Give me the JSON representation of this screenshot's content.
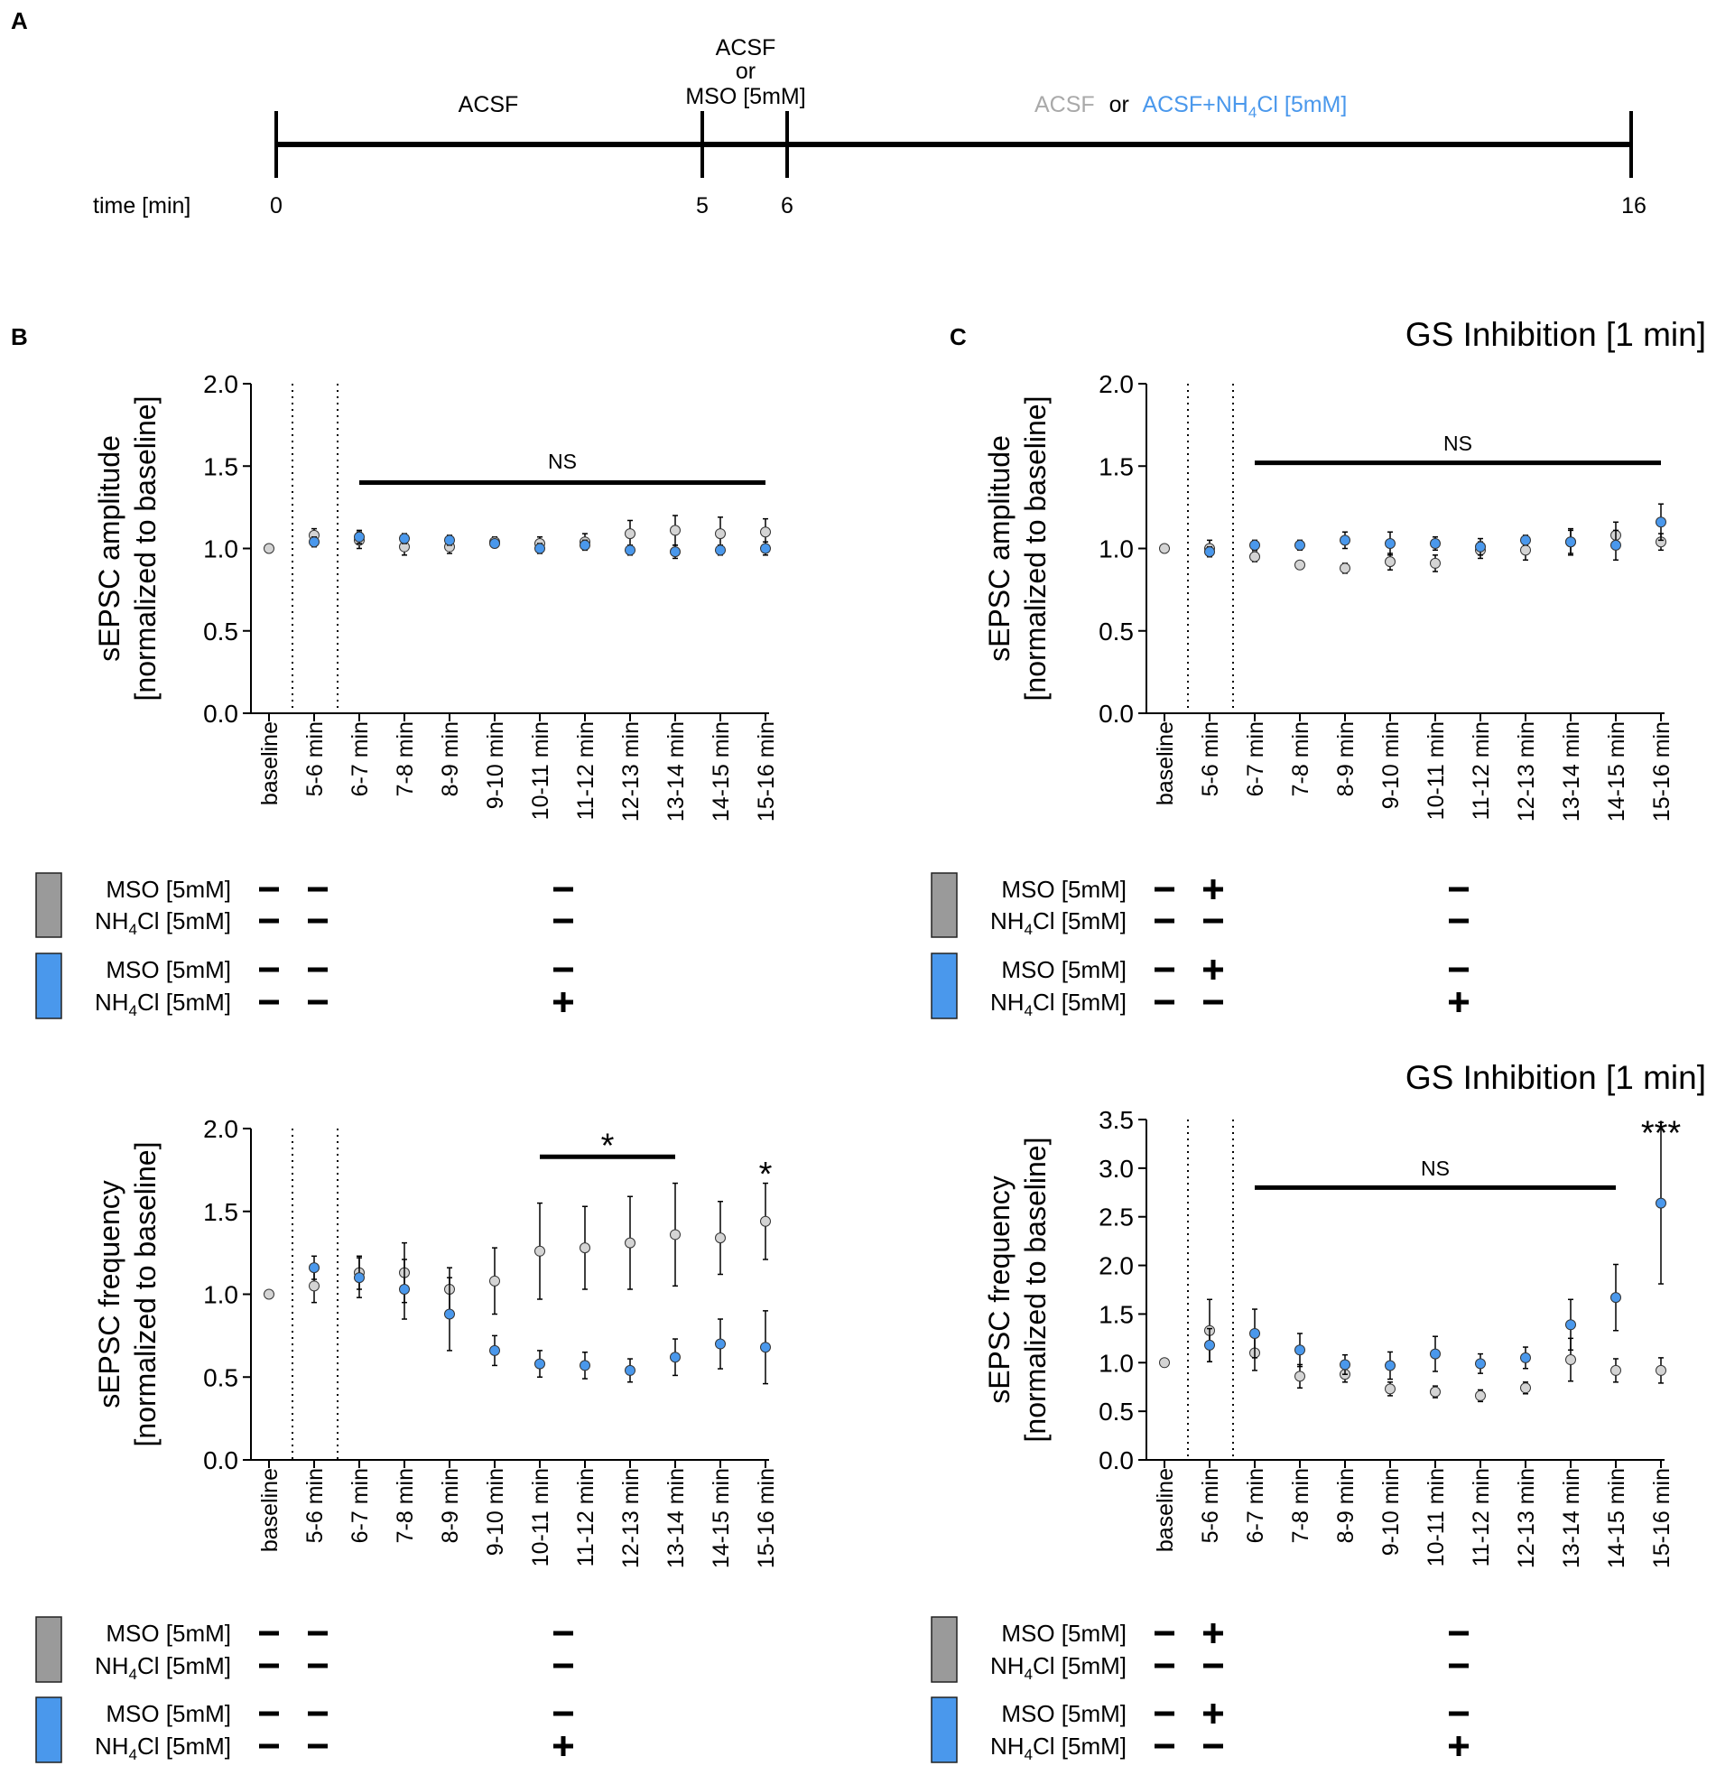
{
  "colors": {
    "gray": "#d4d4d4",
    "gray_swatch": "#9a9a9a",
    "blue": "#4a98ec",
    "black": "#000000"
  },
  "panel_a": {
    "letter": "A",
    "time_label": "time [min]",
    "ticks": [
      "0",
      "5",
      "6",
      "16"
    ],
    "tick_values": [
      0,
      5,
      6,
      16
    ],
    "phase1": "ACSF",
    "phase2_lines": [
      "ACSF",
      "or",
      "MSO [5mM]"
    ],
    "phase3_acsf": "ACSF",
    "phase3_or": "or",
    "phase3_nh4_pre": "ACSF+NH",
    "phase3_nh4_sub": "4",
    "phase3_nh4_post": "Cl [5mM]"
  },
  "panel_letters": {
    "b": "B",
    "c": "C"
  },
  "panel_c_title": "GS Inhibition [1 min]",
  "panel_d_title": "GS Inhibition [1 min]",
  "categories": [
    "baseline",
    "5-6 min",
    "6-7 min",
    "7-8 min",
    "8-9 min",
    "9-10 min",
    "10-11 min",
    "11-12 min",
    "12-13 min",
    "13-14 min",
    "14-15 min",
    "15-16 min"
  ],
  "treatment_tables": {
    "b": {
      "gray": {
        "mso": [
          "-",
          "-",
          "-"
        ],
        "nh4": [
          "-",
          "-",
          "-"
        ]
      },
      "blue": {
        "mso": [
          "-",
          "-",
          "-"
        ],
        "nh4": [
          "-",
          "-",
          "+"
        ]
      }
    },
    "c": {
      "gray": {
        "mso": [
          "-",
          "+",
          "-"
        ],
        "nh4": [
          "-",
          "-",
          "-"
        ]
      },
      "blue": {
        "mso": [
          "-",
          "+",
          "-"
        ],
        "nh4": [
          "-",
          "-",
          "+"
        ]
      }
    }
  },
  "treatment_labels": {
    "mso": "MSO [5mM]",
    "nh4_pre": "NH",
    "nh4_sub": "4",
    "nh4_post": "Cl [5mM]"
  },
  "chart_data": [
    {
      "id": "b_amp",
      "type": "scatter",
      "ylabel_line1": "sEPSC amplitude",
      "ylabel_line2": "[normalized to baseline]",
      "ylim": [
        0,
        2.0
      ],
      "yticks": [
        "0.0",
        "0.5",
        "1.0",
        "1.5",
        "2.0"
      ],
      "ytick_values": [
        0,
        0.5,
        1.0,
        1.5,
        2.0
      ],
      "series": [
        {
          "name": "ACSF",
          "color": "gray",
          "values": [
            1.0,
            1.08,
            1.05,
            1.01,
            1.01,
            1.04,
            1.03,
            1.04,
            1.09,
            1.11,
            1.09,
            1.1
          ],
          "errors": [
            0.0,
            0.04,
            0.05,
            0.05,
            0.04,
            0.03,
            0.04,
            0.05,
            0.08,
            0.09,
            0.1,
            0.08
          ]
        },
        {
          "name": "ACSF+NH4Cl [5mM]",
          "color": "blue",
          "values": [
            null,
            1.04,
            1.07,
            1.06,
            1.05,
            1.03,
            1.0,
            1.02,
            0.99,
            0.98,
            0.99,
            1.0
          ],
          "errors": [
            null,
            0.03,
            0.04,
            0.03,
            0.03,
            0.02,
            0.03,
            0.03,
            0.03,
            0.04,
            0.03,
            0.04
          ]
        }
      ],
      "annotations": [
        {
          "text": "NS",
          "from": 2,
          "to": 11,
          "y": 1.4,
          "label_y": 1.53,
          "size": 23
        }
      ]
    },
    {
      "id": "c_amp",
      "type": "scatter",
      "ylabel_line1": "sEPSC amplitude",
      "ylabel_line2": "[normalized to baseline]",
      "ylim": [
        0,
        2.0
      ],
      "yticks": [
        "0.0",
        "0.5",
        "1.0",
        "1.5",
        "2.0"
      ],
      "ytick_values": [
        0,
        0.5,
        1.0,
        1.5,
        2.0
      ],
      "series": [
        {
          "name": "ACSF",
          "color": "gray",
          "values": [
            1.0,
            1.0,
            0.95,
            0.9,
            0.88,
            0.92,
            0.91,
            0.99,
            0.99,
            1.04,
            1.08,
            1.04
          ],
          "errors": [
            0.0,
            0.05,
            0.03,
            0.02,
            0.03,
            0.05,
            0.05,
            0.05,
            0.06,
            0.07,
            0.08,
            0.05
          ]
        },
        {
          "name": "ACSF+NH4Cl [5mM]",
          "color": "blue",
          "values": [
            null,
            0.98,
            1.02,
            1.02,
            1.05,
            1.03,
            1.03,
            1.01,
            1.05,
            1.04,
            1.02,
            1.16
          ],
          "errors": [
            null,
            0.03,
            0.03,
            0.03,
            0.05,
            0.07,
            0.04,
            0.05,
            0.03,
            0.08,
            0.09,
            0.11
          ]
        }
      ],
      "annotations": [
        {
          "text": "NS",
          "from": 2,
          "to": 11,
          "y": 1.52,
          "label_y": 1.64,
          "size": 23
        }
      ]
    },
    {
      "id": "b_freq",
      "type": "scatter",
      "ylabel_line1": "sEPSC frequency",
      "ylabel_line2": "[normalized to baseline]",
      "ylim": [
        0,
        2.0
      ],
      "yticks": [
        "0.0",
        "0.5",
        "1.0",
        "1.5",
        "2.0"
      ],
      "ytick_values": [
        0,
        0.5,
        1.0,
        1.5,
        2.0
      ],
      "series": [
        {
          "name": "ACSF",
          "color": "gray",
          "values": [
            1.0,
            1.05,
            1.13,
            1.13,
            1.03,
            1.08,
            1.26,
            1.28,
            1.31,
            1.36,
            1.34,
            1.44
          ],
          "errors": [
            0.0,
            0.1,
            0.1,
            0.18,
            0.13,
            0.2,
            0.29,
            0.25,
            0.28,
            0.31,
            0.22,
            0.23
          ]
        },
        {
          "name": "ACSF+NH4Cl [5mM]",
          "color": "blue",
          "values": [
            null,
            1.16,
            1.1,
            1.03,
            0.88,
            0.66,
            0.58,
            0.57,
            0.54,
            0.62,
            0.7,
            0.68
          ],
          "errors": [
            null,
            0.07,
            0.12,
            0.18,
            0.22,
            0.09,
            0.08,
            0.08,
            0.07,
            0.11,
            0.15,
            0.22
          ]
        }
      ],
      "annotations": [
        {
          "text": "*",
          "from": 6,
          "to": 9,
          "y": 1.83,
          "label_y": 1.9,
          "size": 38
        },
        {
          "text": "*",
          "at": 11,
          "label_y": 1.73,
          "size": 38
        }
      ]
    },
    {
      "id": "c_freq",
      "type": "scatter",
      "ylabel_line1": "sEPSC frequency",
      "ylabel_line2": "[normalized to baseline]",
      "ylim": [
        0,
        3.5
      ],
      "yticks": [
        "0.0",
        "0.5",
        "1.0",
        "1.5",
        "2.0",
        "2.5",
        "3.0",
        "3.5"
      ],
      "ytick_values": [
        0,
        0.5,
        1.0,
        1.5,
        2.0,
        2.5,
        3.0,
        3.5
      ],
      "series": [
        {
          "name": "ACSF",
          "color": "gray",
          "values": [
            1.0,
            1.33,
            1.1,
            0.86,
            0.88,
            0.73,
            0.7,
            0.66,
            0.74,
            1.03,
            0.92,
            0.92
          ],
          "errors": [
            0.0,
            0.32,
            0.18,
            0.12,
            0.08,
            0.07,
            0.06,
            0.06,
            0.06,
            0.22,
            0.12,
            0.13
          ]
        },
        {
          "name": "ACSF+NH4Cl [5mM]",
          "color": "blue",
          "values": [
            null,
            1.18,
            1.3,
            1.13,
            0.98,
            0.97,
            1.09,
            0.99,
            1.05,
            1.39,
            1.67,
            2.64
          ],
          "errors": [
            null,
            0.17,
            0.25,
            0.17,
            0.1,
            0.14,
            0.18,
            0.1,
            0.11,
            0.26,
            0.34,
            0.83
          ]
        }
      ],
      "annotations": [
        {
          "text": "NS",
          "from": 2,
          "to": 10,
          "y": 2.8,
          "label_y": 3.0,
          "size": 23
        },
        {
          "text": "***",
          "at": 11,
          "label_y": 3.37,
          "size": 38
        }
      ]
    }
  ]
}
